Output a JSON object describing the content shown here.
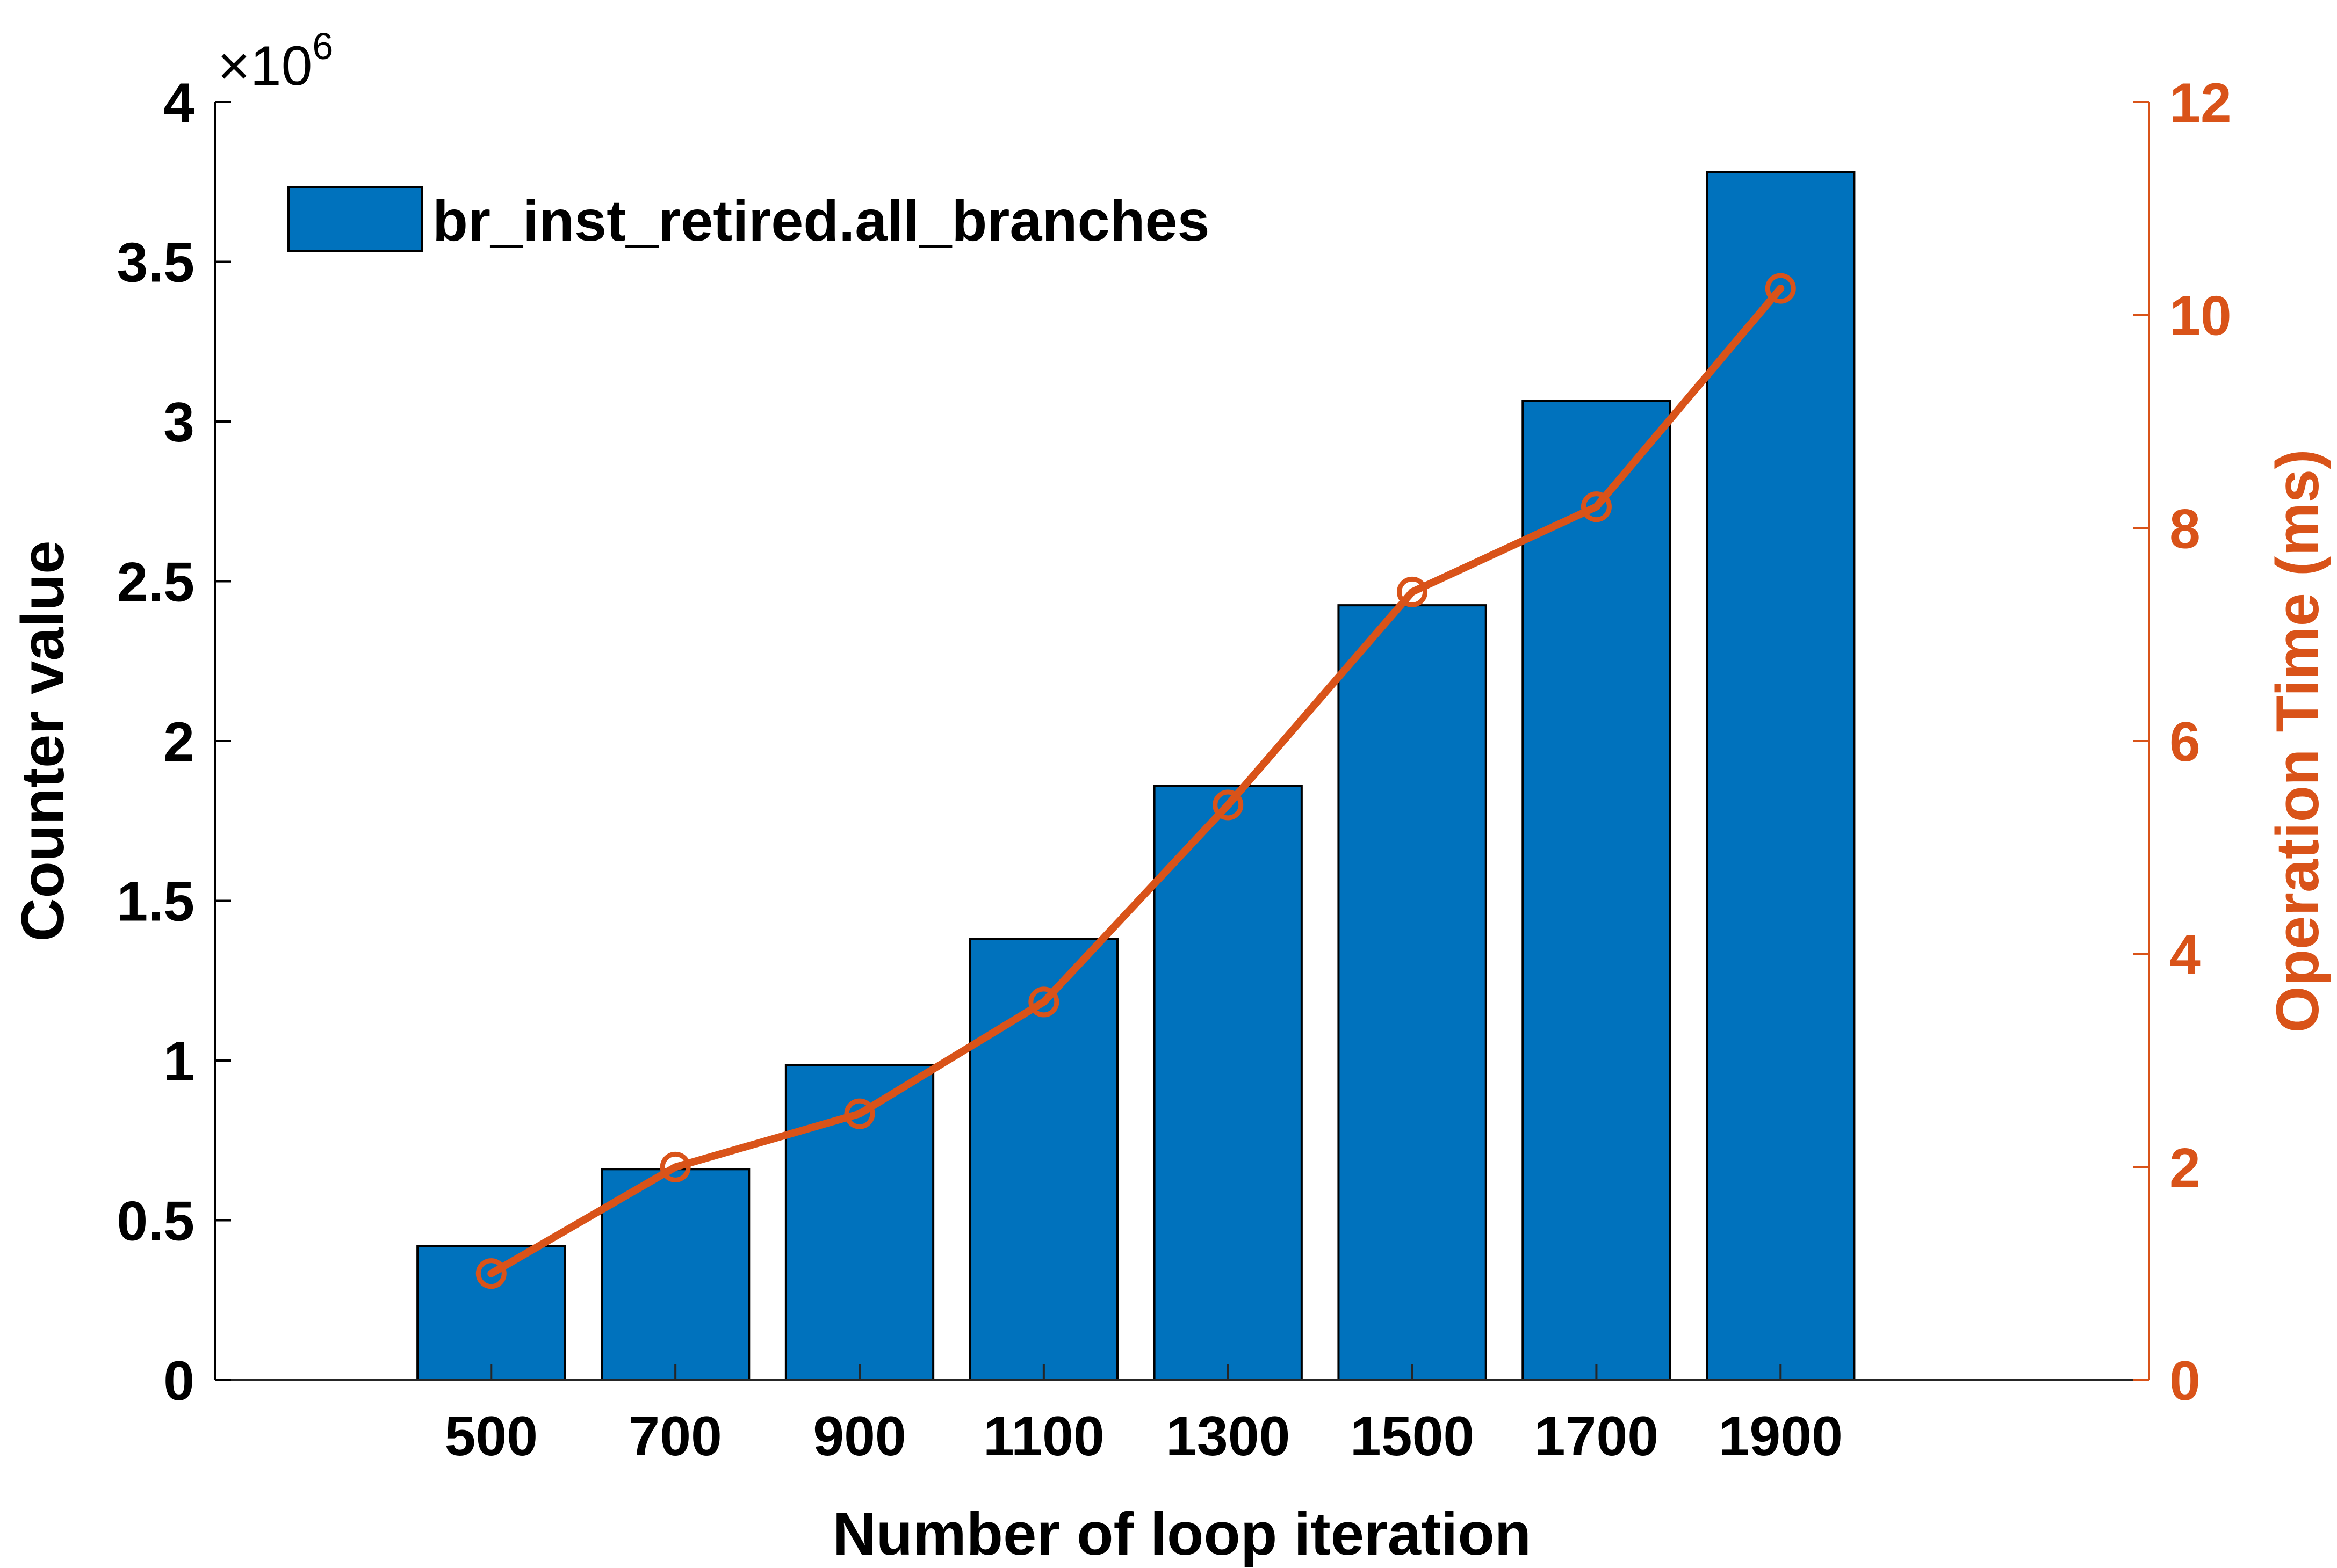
{
  "chart_data": {
    "type": "bar",
    "categories": [
      "500",
      "700",
      "900",
      "1100",
      "1300",
      "1500",
      "1700",
      "1900"
    ],
    "series": [
      {
        "name": "br_inst_retired.all_branches",
        "type": "bar",
        "axis": "left",
        "values": [
          420000,
          660000,
          985000,
          1380000,
          1860000,
          2425000,
          3065000,
          3780000
        ],
        "color": "#0072BD"
      },
      {
        "type": "line",
        "axis": "right",
        "values": [
          1.0,
          2.0,
          2.5,
          3.55,
          5.4,
          7.4,
          8.2,
          10.25
        ],
        "color": "#D95319",
        "marker": "circle"
      }
    ],
    "xlabel": "Number of loop iteration",
    "ylabel_left": "Counter value",
    "ylabel_right": "Operation Time (ms)",
    "ylim_left": [
      0,
      4000000
    ],
    "ylim_right": [
      0,
      12
    ],
    "left_ticks": [
      0,
      0.5,
      1,
      1.5,
      2,
      2.5,
      3,
      3.5,
      4
    ],
    "left_tick_labels": [
      "0",
      "0.5",
      "1",
      "1.5",
      "2",
      "2.5",
      "3",
      "3.5",
      "4"
    ],
    "right_ticks": [
      0,
      2,
      4,
      6,
      8,
      10,
      12
    ],
    "right_tick_labels": [
      "0",
      "2",
      "4",
      "6",
      "8",
      "10",
      "12"
    ],
    "exponent_label": "×10",
    "exponent_power": "6",
    "grid": false,
    "legend_position": "top-left",
    "left_axis_color": "#000000",
    "right_axis_color": "#D95319"
  }
}
